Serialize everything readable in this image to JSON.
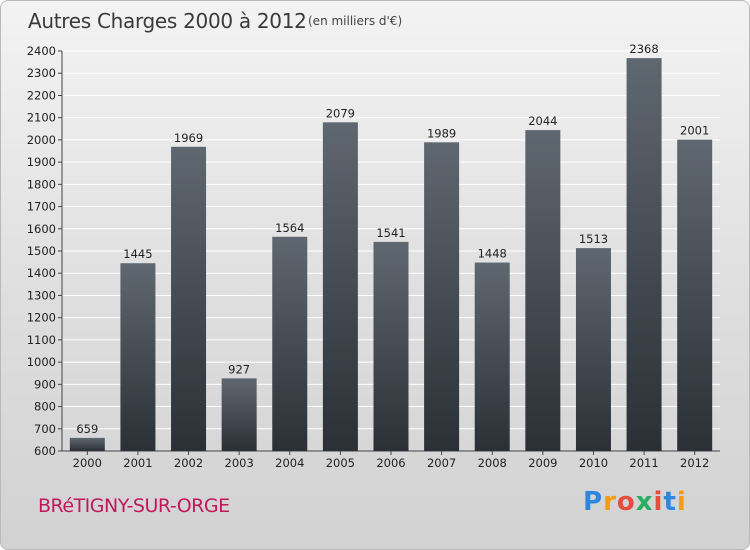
{
  "chart_data": {
    "type": "bar",
    "title": "Autres Charges 2000 à 2012",
    "subtitle": "(en milliers d'€)",
    "categories": [
      "2000",
      "2001",
      "2002",
      "2003",
      "2004",
      "2005",
      "2006",
      "2007",
      "2008",
      "2009",
      "2010",
      "2011",
      "2012"
    ],
    "values": [
      659,
      1445,
      1969,
      927,
      1564,
      2079,
      1541,
      1989,
      1448,
      2044,
      1513,
      2368,
      2001
    ],
    "ylim": [
      600,
      2400
    ],
    "yticks": [
      600,
      700,
      800,
      900,
      1000,
      1100,
      1200,
      1300,
      1400,
      1500,
      1600,
      1700,
      1800,
      1900,
      2000,
      2100,
      2200,
      2300,
      2400
    ],
    "grid": true,
    "bar_color_top": "#5f6770",
    "bar_color_bottom": "#2a3036",
    "grid_color": "#ffffff"
  },
  "footer": {
    "city": "BRéTIGNY-SUR-ORGE",
    "logo_letters": [
      "P",
      "r",
      "o",
      "x",
      "i",
      "t",
      "i"
    ],
    "logo_colors": [
      "#2e86de",
      "#f39c12",
      "#e74c3c",
      "#27ae60",
      "#e74c3c",
      "#2e86de",
      "#f39c12"
    ],
    "city_color": "#c2185b"
  }
}
